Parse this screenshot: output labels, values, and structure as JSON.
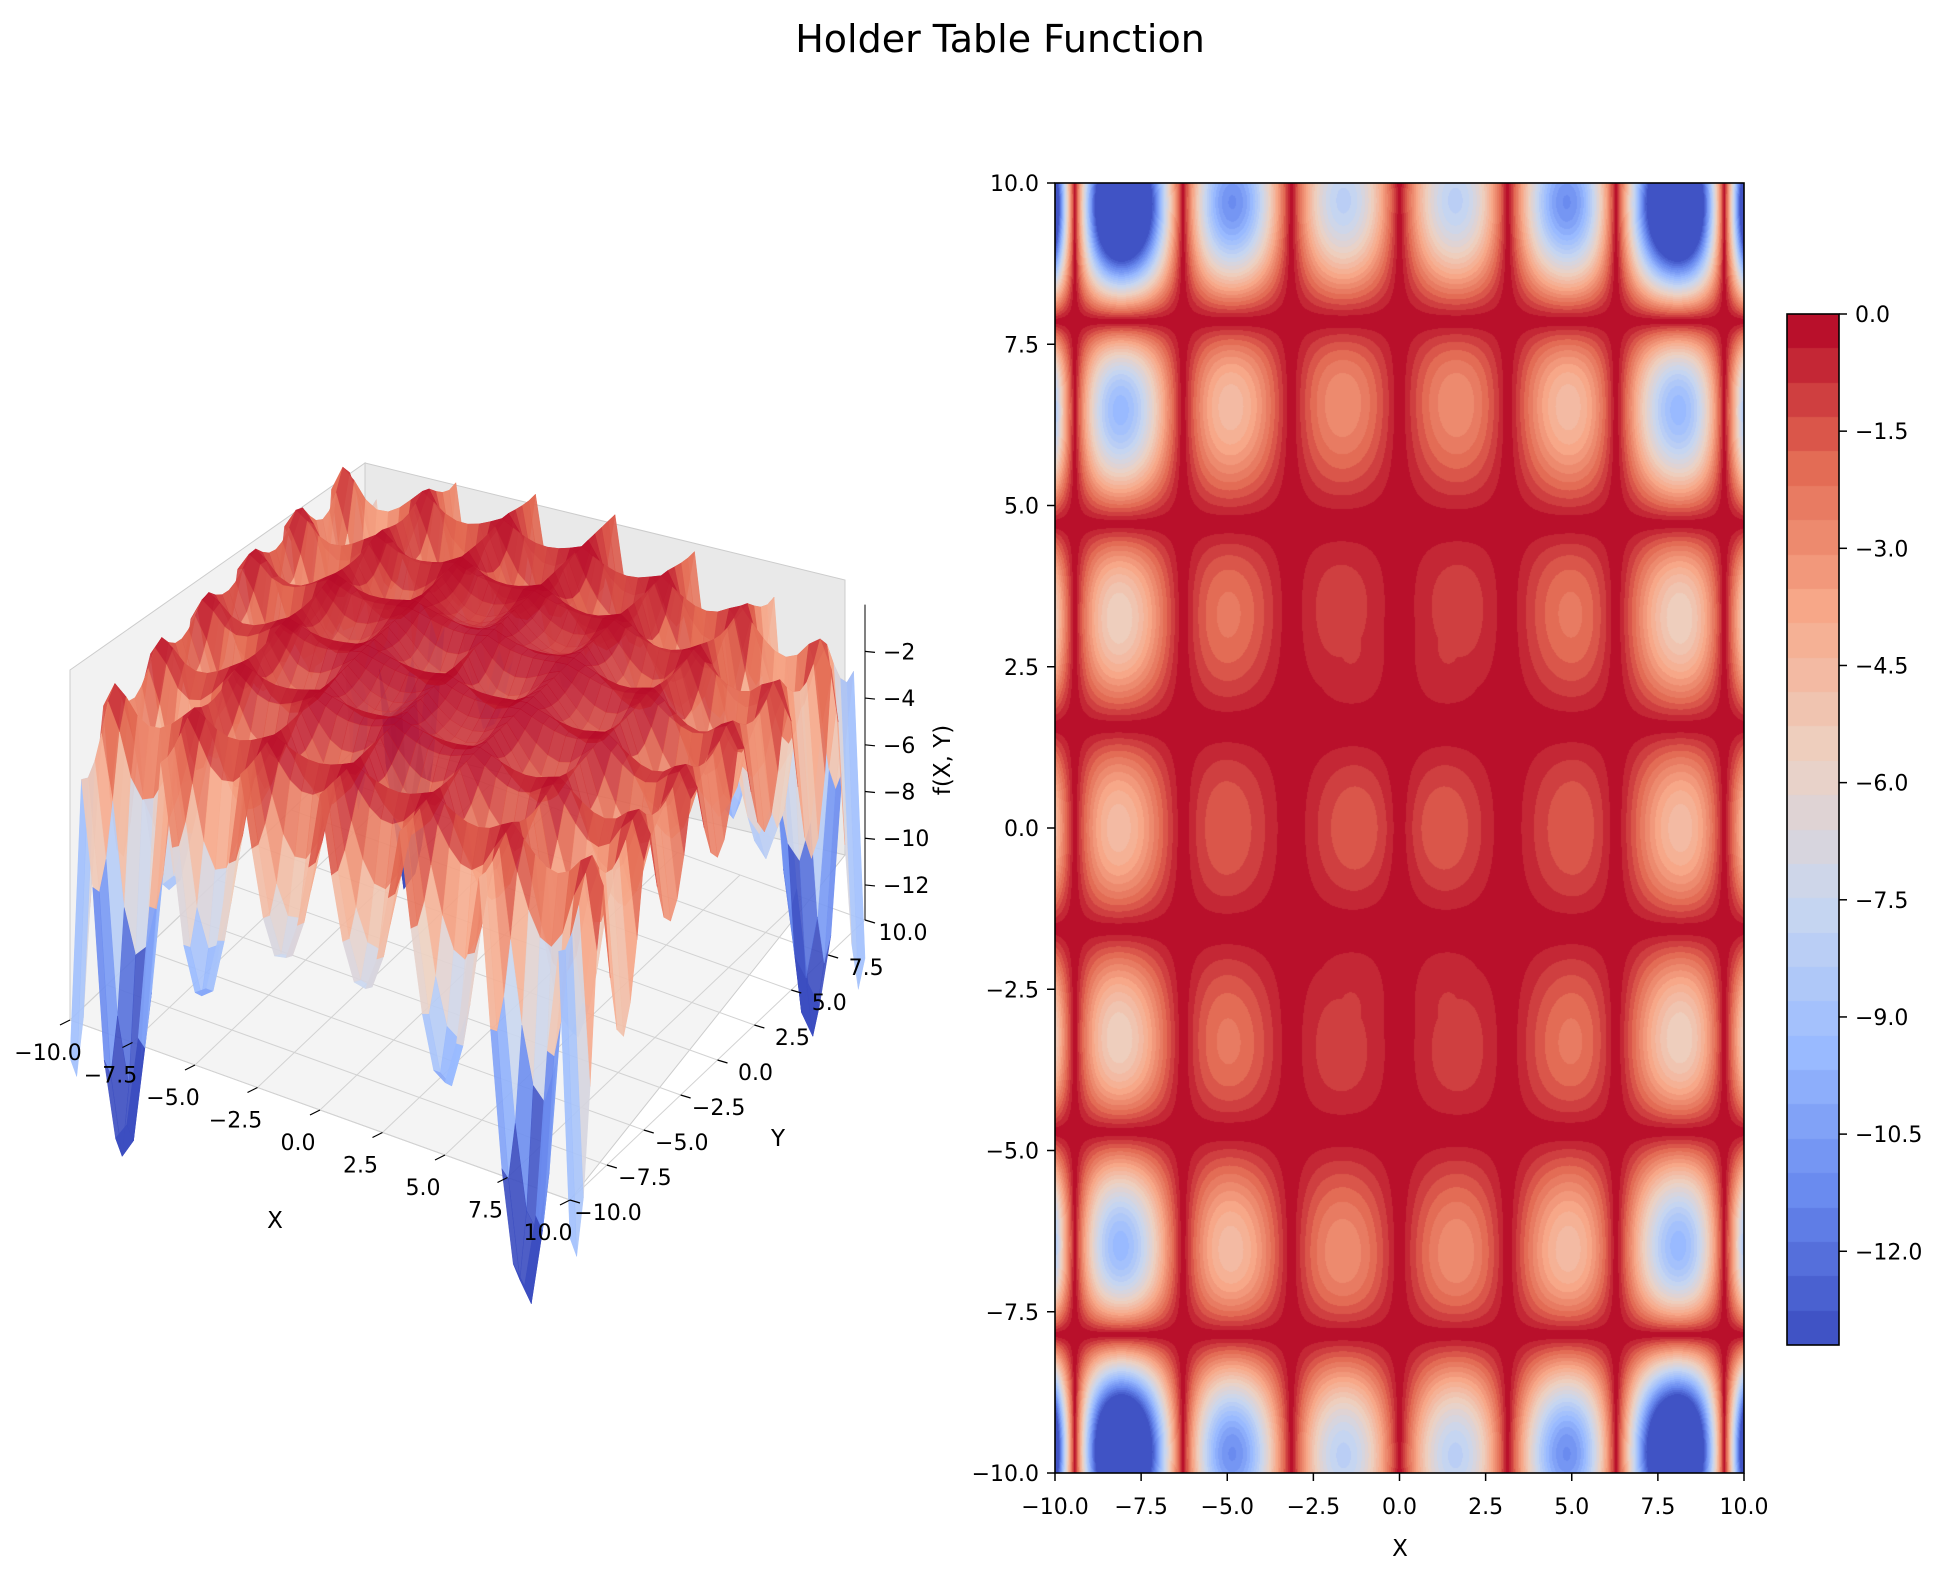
{
  "figure": {
    "title": "Holder Table Function"
  },
  "colormap": {
    "name": "coolwarm",
    "stops": [
      "#3b4cc0",
      "#6788ee",
      "#9abbff",
      "#c9d7f0",
      "#edd1c2",
      "#f7a889",
      "#e26952",
      "#b40426"
    ]
  },
  "chart_data": [
    {
      "type": "surface",
      "function": "f(X, Y) = -|sin(X) cos(Y) exp(|1 - sqrt(X^2 + Y^2)/pi|)|",
      "x_range": [
        -10,
        10
      ],
      "y_range": [
        -10,
        10
      ],
      "z_range": [
        -13.5,
        -0.0
      ],
      "xlabel": "X",
      "ylabel": "Y",
      "zlabel": "f(X, Y)",
      "x_ticks": [
        "−10.0",
        "−7.5",
        "−5.0",
        "−2.5",
        "0.0",
        "2.5",
        "5.0",
        "7.5",
        "10.0"
      ],
      "y_ticks": [
        "−10.0",
        "−7.5",
        "−5.0",
        "−2.5",
        "0.0",
        "2.5",
        "5.0",
        "7.5",
        "10.0"
      ],
      "z_ticks": [
        "−2",
        "−4",
        "−6",
        "−8",
        "−10",
        "−12"
      ],
      "grid": true,
      "colormap": "coolwarm"
    },
    {
      "type": "heatmap",
      "subtype": "filled-contour",
      "function": "f(X, Y) = -|sin(X) cos(Y) exp(|1 - sqrt(X^2 + Y^2)/pi|)|",
      "x_range": [
        -10,
        10
      ],
      "y_range": [
        -10,
        10
      ],
      "levels": 30,
      "xlabel": "X",
      "ylabel": "",
      "x_ticks": [
        "−10.0",
        "−7.5",
        "−5.0",
        "−2.5",
        "0.0",
        "2.5",
        "5.0",
        "7.5",
        "10.0"
      ],
      "y_ticks": [
        "10.0",
        "7.5",
        "5.0",
        "2.5",
        "0.0",
        "−2.5",
        "−5.0",
        "−7.5",
        "−10.0"
      ],
      "colorbar": {
        "range": [
          -13.2,
          0.0
        ],
        "ticks": [
          "0.0",
          "−1.5",
          "−3.0",
          "−4.5",
          "−6.0",
          "−7.5",
          "−9.0",
          "−10.5",
          "−12.0"
        ]
      }
    }
  ]
}
